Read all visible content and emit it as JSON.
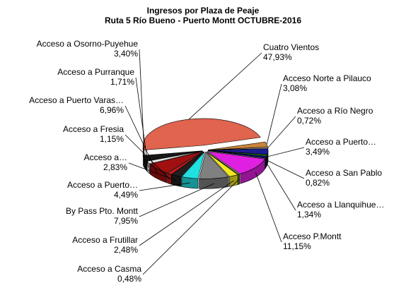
{
  "chart_data": {
    "type": "pie",
    "title": "Ingresos por Plaza de Peaje",
    "subtitle": "Ruta 5 Río Bueno - Puerto Montt OCTUBRE-2016",
    "categories": [
      "Cuatro Vientos",
      "Acceso Norte a Pilauco",
      "Acceso a Río Negro",
      "Acceso a Puerto…",
      "Acceso a San Pablo",
      "Acceso a  Llanquihue…",
      "Acceso P.Montt",
      "Acceso a Casma",
      "Acceso a Frutillar",
      "By Pass Pto. Montt",
      "Acceso a Puerto…",
      "Acceso a…",
      "Acceso a Fresia",
      "Acceso a Puerto Varas…",
      "Acceso a Purranque",
      "Acceso a Osorno-Puyehue"
    ],
    "values": [
      47.93,
      3.08,
      0.72,
      3.49,
      0.82,
      1.34,
      11.15,
      0.48,
      2.48,
      7.95,
      4.49,
      2.83,
      1.15,
      6.96,
      1.71,
      3.4
    ],
    "value_labels": [
      "47,93%",
      "3,08%",
      "0,72%",
      "3,49%",
      "0,82%",
      "1,34%",
      "11,15%",
      "0,48%",
      "2,48%",
      "7,95%",
      "4,49%",
      "2,83%",
      "1,15%",
      "6,96%",
      "1,71%",
      "3,40%"
    ],
    "colors": [
      "#e0644e",
      "#c8843c",
      "#e8d8b0",
      "#1c1c90",
      "#20a020",
      "#101060",
      "#e020e0",
      "#8c8c30",
      "#f0e820",
      "#808080",
      "#20e0e0",
      "#202020",
      "#e01818",
      "#a01010",
      "#e8e8e8",
      "#181818"
    ]
  }
}
